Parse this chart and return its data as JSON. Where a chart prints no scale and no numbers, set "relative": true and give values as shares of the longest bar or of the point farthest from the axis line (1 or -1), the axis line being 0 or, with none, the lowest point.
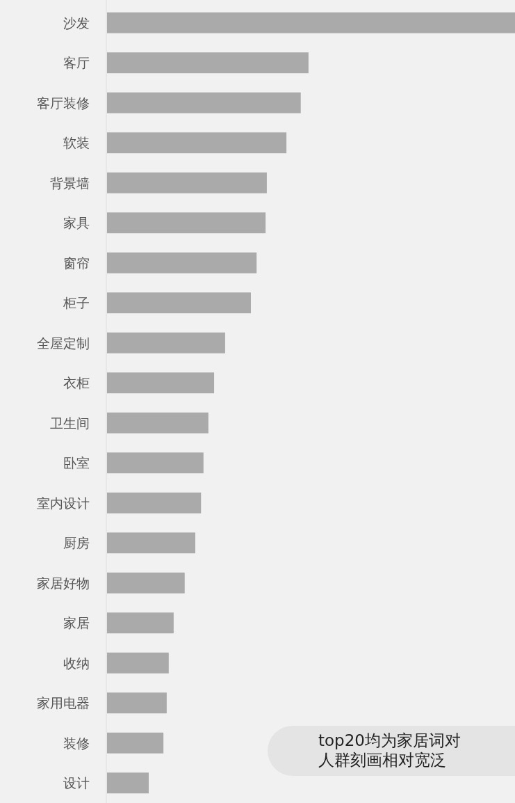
{
  "chart_data": {
    "type": "bar",
    "orientation": "horizontal",
    "relative": true,
    "categories": [
      "沙发",
      "客厅",
      "客厅装修",
      "软装",
      "背景墙",
      "家具",
      "窗帘",
      "柜子",
      "全屋定制",
      "衣柜",
      "卫生间",
      "卧室",
      "室内设计",
      "厨房",
      "家居好物",
      "家居",
      "收纳",
      "家用电器",
      "装修",
      "设计"
    ],
    "values": [
      1,
      0.493,
      0.474,
      0.439,
      0.391,
      0.388,
      0.366,
      0.352,
      0.289,
      0.262,
      0.248,
      0.236,
      0.23,
      0.216,
      0.19,
      0.163,
      0.151,
      0.146,
      0.138,
      0.102
    ],
    "color": "#aaaaaa",
    "annotations": [
      "top20均为家居词对",
      "人群刻画相对宽泛"
    ]
  }
}
